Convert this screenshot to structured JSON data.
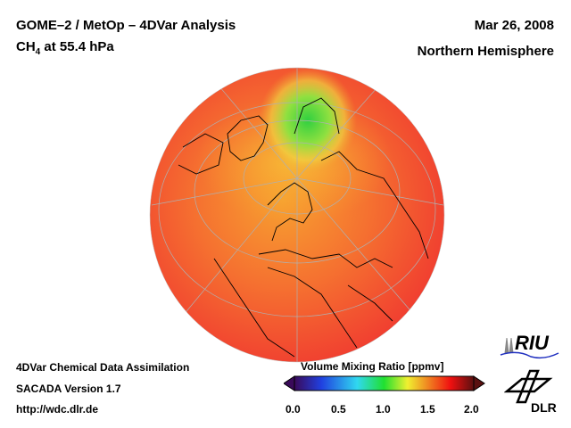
{
  "header": {
    "title": "GOME–2 / MetOp – 4DVar Analysis",
    "species_main": "CH",
    "species_sub": "4",
    "species_level": " at 55.4 hPa",
    "date": "Mar 26, 2008",
    "region": "Northern Hemisphere"
  },
  "footer": {
    "line1": "4DVar Chemical Data Assimilation",
    "line2": "SACADA Version 1.7",
    "line3": "http://wdc.dlr.de"
  },
  "colorbar": {
    "title": "Volume Mixing Ratio [ppmv]",
    "ticks": [
      "0.0",
      "0.5",
      "1.0",
      "1.5",
      "2.0"
    ],
    "range": [
      0.0,
      2.0
    ],
    "colors": [
      "#3a0a5a",
      "#1a4cf0",
      "#30d8f0",
      "#20e030",
      "#f0f030",
      "#f08020",
      "#f01010",
      "#5a1010"
    ]
  },
  "logos": {
    "riu": "RIU",
    "dlr": "DLR"
  }
}
